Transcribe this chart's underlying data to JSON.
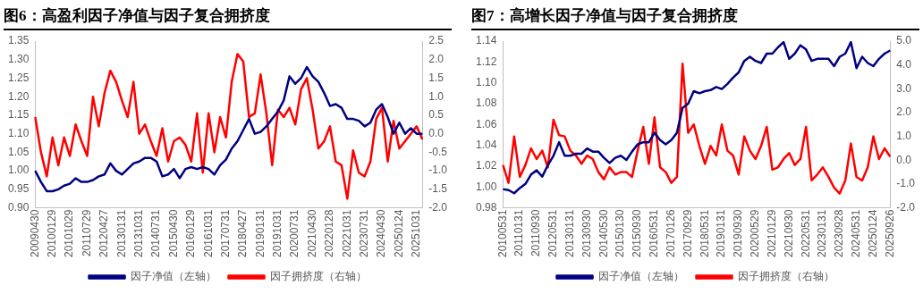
{
  "chart_data": [
    {
      "type": "line",
      "title": "图6：高盈利因子净值与因子复合拥挤度",
      "legend": "bottom",
      "grid": false,
      "marker": "none",
      "categories": [
        "20090430",
        null,
        null,
        "20100129",
        null,
        null,
        "20101029",
        null,
        null,
        "20110729",
        null,
        null,
        "20120427",
        null,
        null,
        "20130131",
        null,
        null,
        "20131031",
        null,
        null,
        "20140731",
        null,
        null,
        "20150430",
        null,
        null,
        "20160129",
        null,
        null,
        "20161031",
        null,
        null,
        "20170731",
        null,
        null,
        "20180427",
        null,
        null,
        "20190131",
        null,
        null,
        "20191031",
        null,
        null,
        "20200731",
        null,
        null,
        "20210430",
        null,
        null,
        "20220128",
        null,
        null,
        "20221031",
        null,
        null,
        "20230731",
        null,
        null,
        "20240430",
        null,
        null,
        "20250124",
        null,
        null,
        "20251031",
        null
      ],
      "series": [
        {
          "name": "因子净值（左轴）",
          "color": "#000080",
          "values": [
            1.0,
            0.97,
            0.945,
            0.945,
            0.95,
            0.96,
            0.965,
            0.98,
            0.97,
            0.97,
            0.975,
            0.985,
            0.99,
            1.02,
            1.0,
            0.99,
            1.005,
            1.02,
            1.025,
            1.035,
            1.035,
            1.025,
            0.985,
            0.99,
            1.005,
            0.98,
            1.005,
            1.01,
            1.005,
            1.01,
            1.005,
            0.99,
            1.015,
            1.03,
            1.06,
            1.08,
            1.11,
            1.14,
            1.1,
            1.105,
            1.12,
            1.14,
            1.16,
            1.19,
            1.255,
            1.235,
            1.25,
            1.28,
            1.255,
            1.24,
            1.21,
            1.175,
            1.18,
            1.17,
            1.14,
            1.14,
            1.135,
            1.12,
            1.13,
            1.165,
            1.18,
            1.145,
            1.1,
            1.13,
            1.1,
            1.115,
            1.1,
            1.1
          ]
        },
        {
          "name": "因子拥挤度（右轴）",
          "color": "#ff0000",
          "axis": "y2",
          "values": [
            0.45,
            -0.5,
            -1.15,
            -0.1,
            -0.85,
            -0.1,
            -0.6,
            0.25,
            -0.2,
            -0.6,
            1.0,
            0.2,
            1.1,
            1.7,
            1.4,
            0.9,
            0.45,
            1.4,
            0.0,
            0.25,
            -0.2,
            -0.6,
            0.15,
            -0.75,
            -0.2,
            -0.1,
            -0.3,
            -0.75,
            0.55,
            -1.05,
            0.55,
            -0.5,
            0.45,
            -0.1,
            1.4,
            2.15,
            1.95,
            0.45,
            0.55,
            1.6,
            0.55,
            -0.85,
            0.65,
            0.45,
            0.7,
            0.25,
            1.2,
            1.5,
            0.65,
            -0.4,
            -0.2,
            0.2,
            -0.75,
            -0.85,
            -1.75,
            -0.45,
            -1.05,
            -1.15,
            -0.75,
            0.4,
            0.7,
            -0.75,
            0.35,
            -0.4,
            -0.2,
            0.0,
            0.2,
            -0.15
          ]
        }
      ],
      "ylim": [
        0.9,
        1.35
      ],
      "yticks": [
        {
          "value": 0.9,
          "label": "0.90"
        },
        {
          "value": 0.95,
          "label": "0.95"
        },
        {
          "value": 1.0,
          "label": "1.00"
        },
        {
          "value": 1.05,
          "label": "1.05"
        },
        {
          "value": 1.1,
          "label": "1.10"
        },
        {
          "value": 1.15,
          "label": "1.15"
        },
        {
          "value": 1.2,
          "label": "1.20"
        },
        {
          "value": 1.25,
          "label": "1.25"
        },
        {
          "value": 1.3,
          "label": "1.30"
        },
        {
          "value": 1.35,
          "label": "1.35"
        }
      ],
      "y2lim": [
        -2.0,
        2.5
      ],
      "y2ticks": [
        {
          "value": -2,
          "label": "-2.0"
        },
        {
          "value": -1.5,
          "label": "-1.5"
        },
        {
          "value": -1,
          "label": "-1.0"
        },
        {
          "value": -0.5,
          "label": "-0.5"
        },
        {
          "value": 0,
          "label": "0.0"
        },
        {
          "value": 0.5,
          "label": "0.5"
        },
        {
          "value": 1,
          "label": "1.0"
        },
        {
          "value": 1.5,
          "label": "1.5"
        },
        {
          "value": 2,
          "label": "2.0"
        },
        {
          "value": 2.5,
          "label": "2.5"
        }
      ]
    },
    {
      "type": "line",
      "title": "图7：高增长因子净值与因子复合拥挤度",
      "legend": "bottom",
      "grid": false,
      "marker": "none",
      "categories": [
        "20100531",
        null,
        null,
        "20110131",
        null,
        null,
        "20110930",
        null,
        null,
        "20120531",
        null,
        null,
        "20130131",
        null,
        null,
        "20130930",
        null,
        null,
        "20140530",
        null,
        null,
        "20150130",
        null,
        null,
        "20150930",
        null,
        null,
        "20160531",
        null,
        null,
        "20170126",
        null,
        null,
        "20170929",
        null,
        null,
        "20180531",
        null,
        null,
        "20190131",
        null,
        null,
        "20190930",
        null,
        null,
        "20200529",
        null,
        null,
        "20210129",
        null,
        null,
        "20210930",
        null,
        null,
        "20220531",
        null,
        null,
        "20230131",
        null,
        null,
        "20230928",
        null,
        null,
        "20240531",
        null,
        null,
        "20250124",
        null,
        null,
        "20250926"
      ],
      "series": [
        {
          "name": "因子净值（左轴）",
          "color": "#000080",
          "values": [
            0.998,
            0.997,
            0.994,
            0.999,
            1.003,
            1.012,
            1.016,
            1.01,
            1.021,
            1.03,
            1.043,
            1.03,
            1.03,
            1.032,
            1.032,
            1.037,
            1.034,
            1.034,
            1.028,
            1.023,
            1.028,
            1.03,
            1.026,
            1.034,
            1.041,
            1.043,
            1.043,
            1.052,
            1.045,
            1.041,
            1.045,
            1.052,
            1.076,
            1.08,
            1.092,
            1.09,
            1.092,
            1.093,
            1.096,
            1.094,
            1.099,
            1.105,
            1.11,
            1.121,
            1.125,
            1.121,
            1.119,
            1.128,
            1.128,
            1.134,
            1.139,
            1.123,
            1.128,
            1.136,
            1.132,
            1.121,
            1.123,
            1.123,
            1.123,
            1.116,
            1.125,
            1.128,
            1.139,
            1.114,
            1.125,
            1.119,
            1.116,
            1.123,
            1.128,
            1.131
          ]
        },
        {
          "name": "因子拥挤度（右轴）",
          "color": "#ff0000",
          "axis": "y2",
          "values": [
            -0.2,
            -0.95,
            1.0,
            -0.7,
            -0.2,
            0.5,
            0.05,
            0.4,
            -0.3,
            1.7,
            1.05,
            1.0,
            0.4,
            0.2,
            -0.15,
            0.2,
            0.05,
            -0.5,
            -0.8,
            -0.3,
            -0.6,
            -0.5,
            -0.5,
            -0.7,
            0.4,
            1.4,
            -0.15,
            1.8,
            -0.3,
            -0.5,
            -0.95,
            -0.7,
            4.05,
            1.15,
            1.5,
            0.6,
            -0.15,
            0.6,
            0.2,
            1.5,
            0.4,
            0.2,
            -0.6,
            1.0,
            0.4,
            0.05,
            0.6,
            1.4,
            -0.4,
            -0.3,
            0.05,
            0.3,
            -0.2,
            0.05,
            1.4,
            -0.85,
            -0.6,
            -0.3,
            -0.7,
            -1.15,
            -1.4,
            -0.85,
            0.7,
            -0.7,
            -0.85,
            -0.3,
            1.0,
            0.05,
            0.5,
            0.15
          ]
        }
      ],
      "ylim": [
        0.98,
        1.14
      ],
      "yticks": [
        {
          "value": 0.98,
          "label": "0.98"
        },
        {
          "value": 1.0,
          "label": "1.00"
        },
        {
          "value": 1.02,
          "label": "1.02"
        },
        {
          "value": 1.04,
          "label": "1.04"
        },
        {
          "value": 1.06,
          "label": "1.06"
        },
        {
          "value": 1.08,
          "label": "1.08"
        },
        {
          "value": 1.1,
          "label": "1.10"
        },
        {
          "value": 1.12,
          "label": "1.12"
        },
        {
          "value": 1.14,
          "label": "1.14"
        }
      ],
      "y2lim": [
        -2.0,
        5.0
      ],
      "y2ticks": [
        {
          "value": -2,
          "label": "-2.0"
        },
        {
          "value": -1,
          "label": "-1.0"
        },
        {
          "value": 0,
          "label": "0.0"
        },
        {
          "value": 1,
          "label": "1.0"
        },
        {
          "value": 2,
          "label": "2.0"
        },
        {
          "value": 3,
          "label": "3.0"
        },
        {
          "value": 4,
          "label": "4.0"
        },
        {
          "value": 5,
          "label": "5.0"
        }
      ]
    }
  ]
}
